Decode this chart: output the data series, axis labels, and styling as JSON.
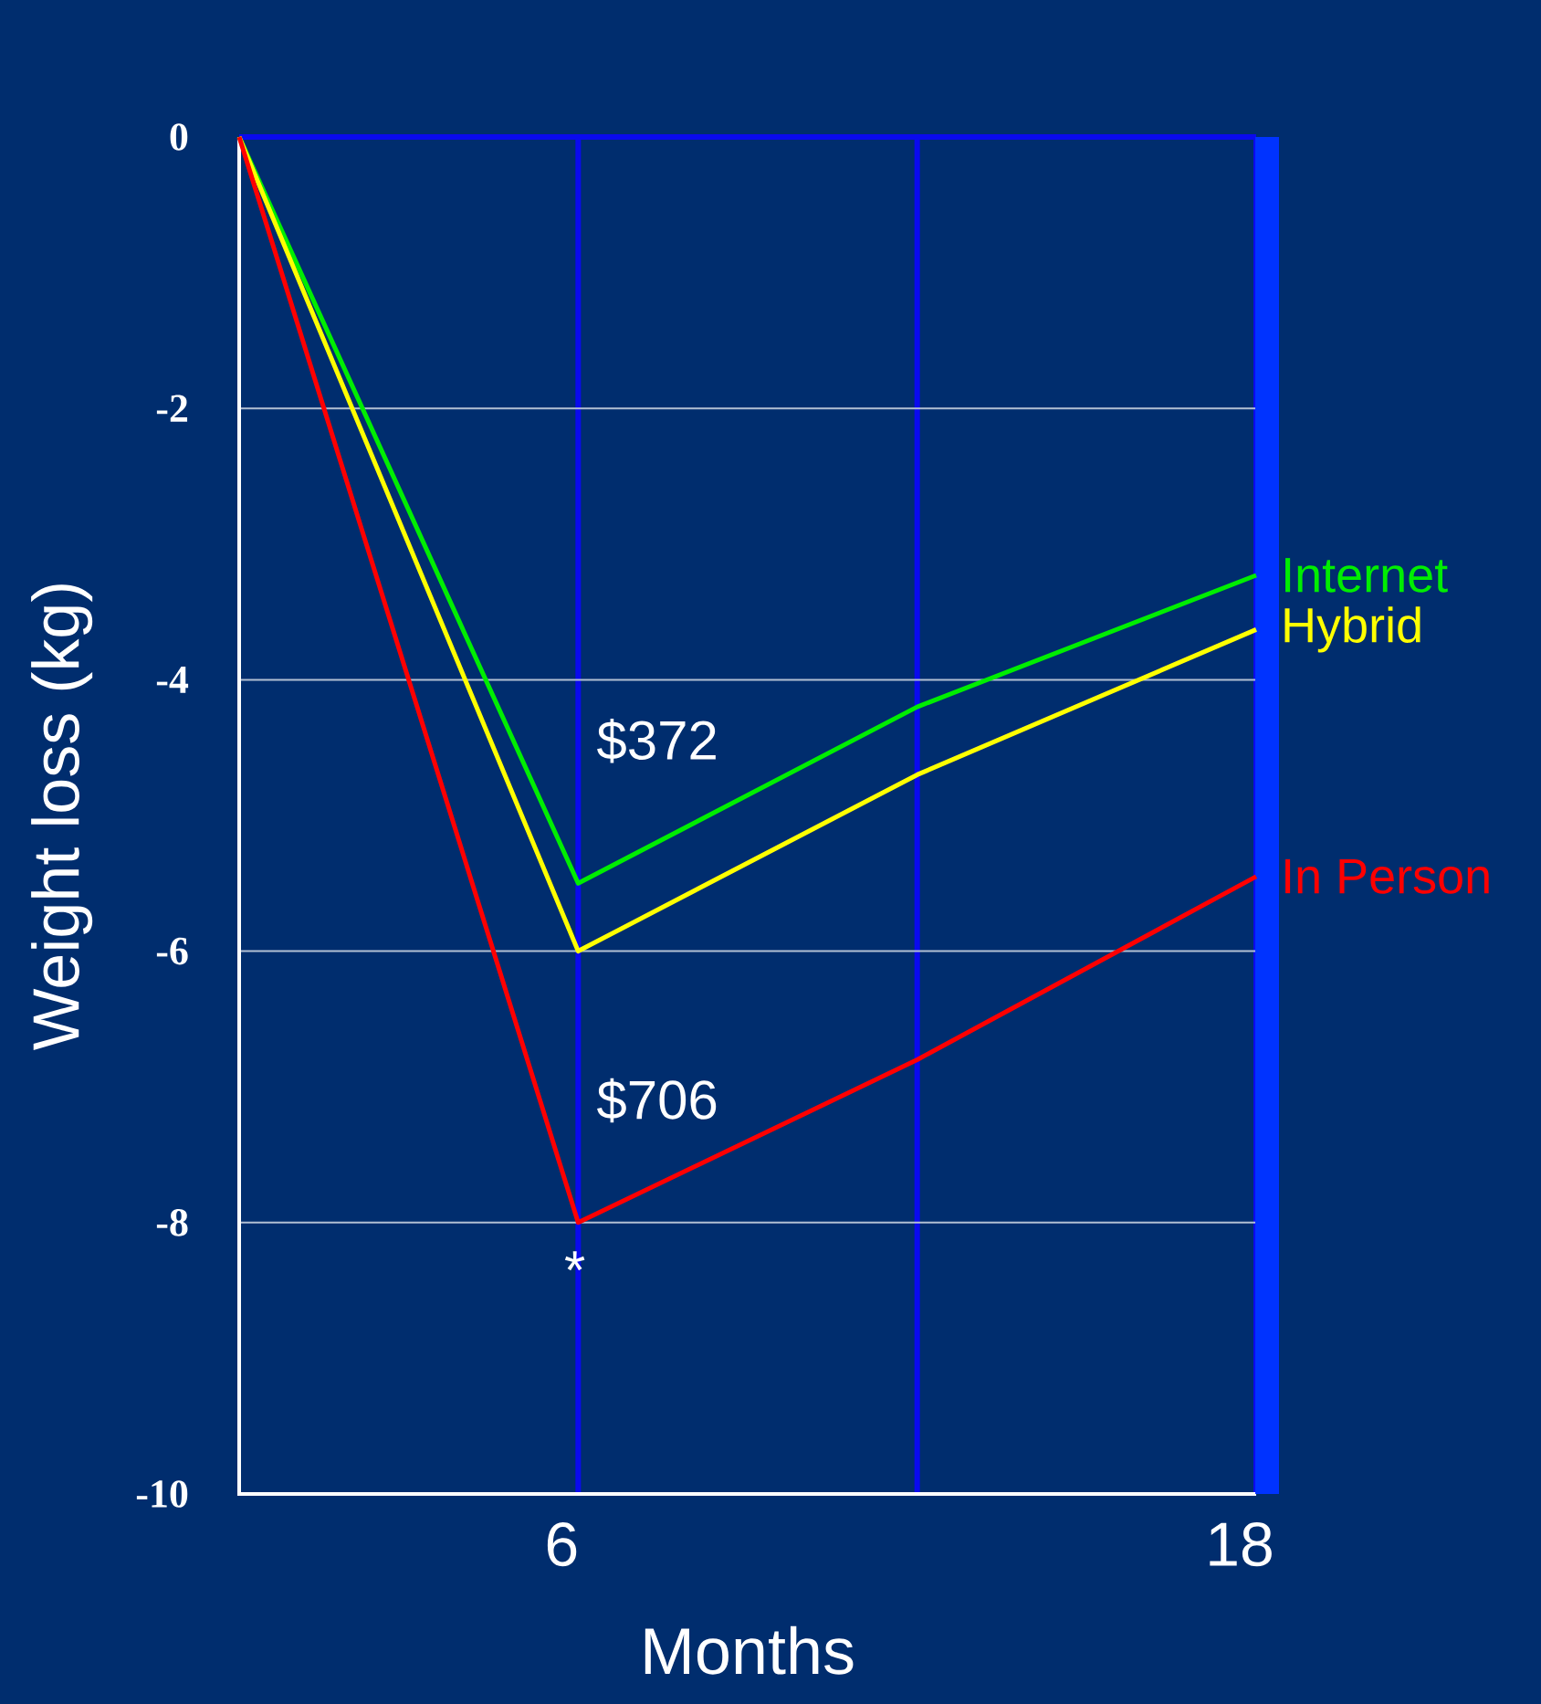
{
  "chart_data": {
    "type": "line",
    "xlabel": "Months",
    "ylabel": "Weight loss (kg)",
    "xlim": [
      0,
      18
    ],
    "xticks": [
      6,
      {
        "value": 12,
        "label": null
      },
      18
    ],
    "ylim": [
      -10,
      0
    ],
    "yticks": [
      -10,
      -8,
      -6,
      -4,
      -2,
      0
    ],
    "grid": true,
    "marker": "none",
    "line_style": "solid",
    "series": [
      {
        "name": "Internet",
        "color": "#00ee00",
        "x": [
          0,
          6,
          12,
          18
        ],
        "values": [
          0,
          -5.5,
          -4.2,
          -3.23
        ]
      },
      {
        "name": "Hybrid",
        "color": "#ffff00",
        "x": [
          0,
          6,
          12,
          18
        ],
        "values": [
          0,
          -6.0,
          -4.7,
          -3.63
        ]
      },
      {
        "name": "In Person",
        "color": "#ff0000",
        "x": [
          0,
          6,
          12,
          18
        ],
        "values": [
          0,
          -8.0,
          -6.8,
          -5.45
        ]
      }
    ],
    "annotations": [
      "$372",
      "$706",
      "*"
    ]
  }
}
